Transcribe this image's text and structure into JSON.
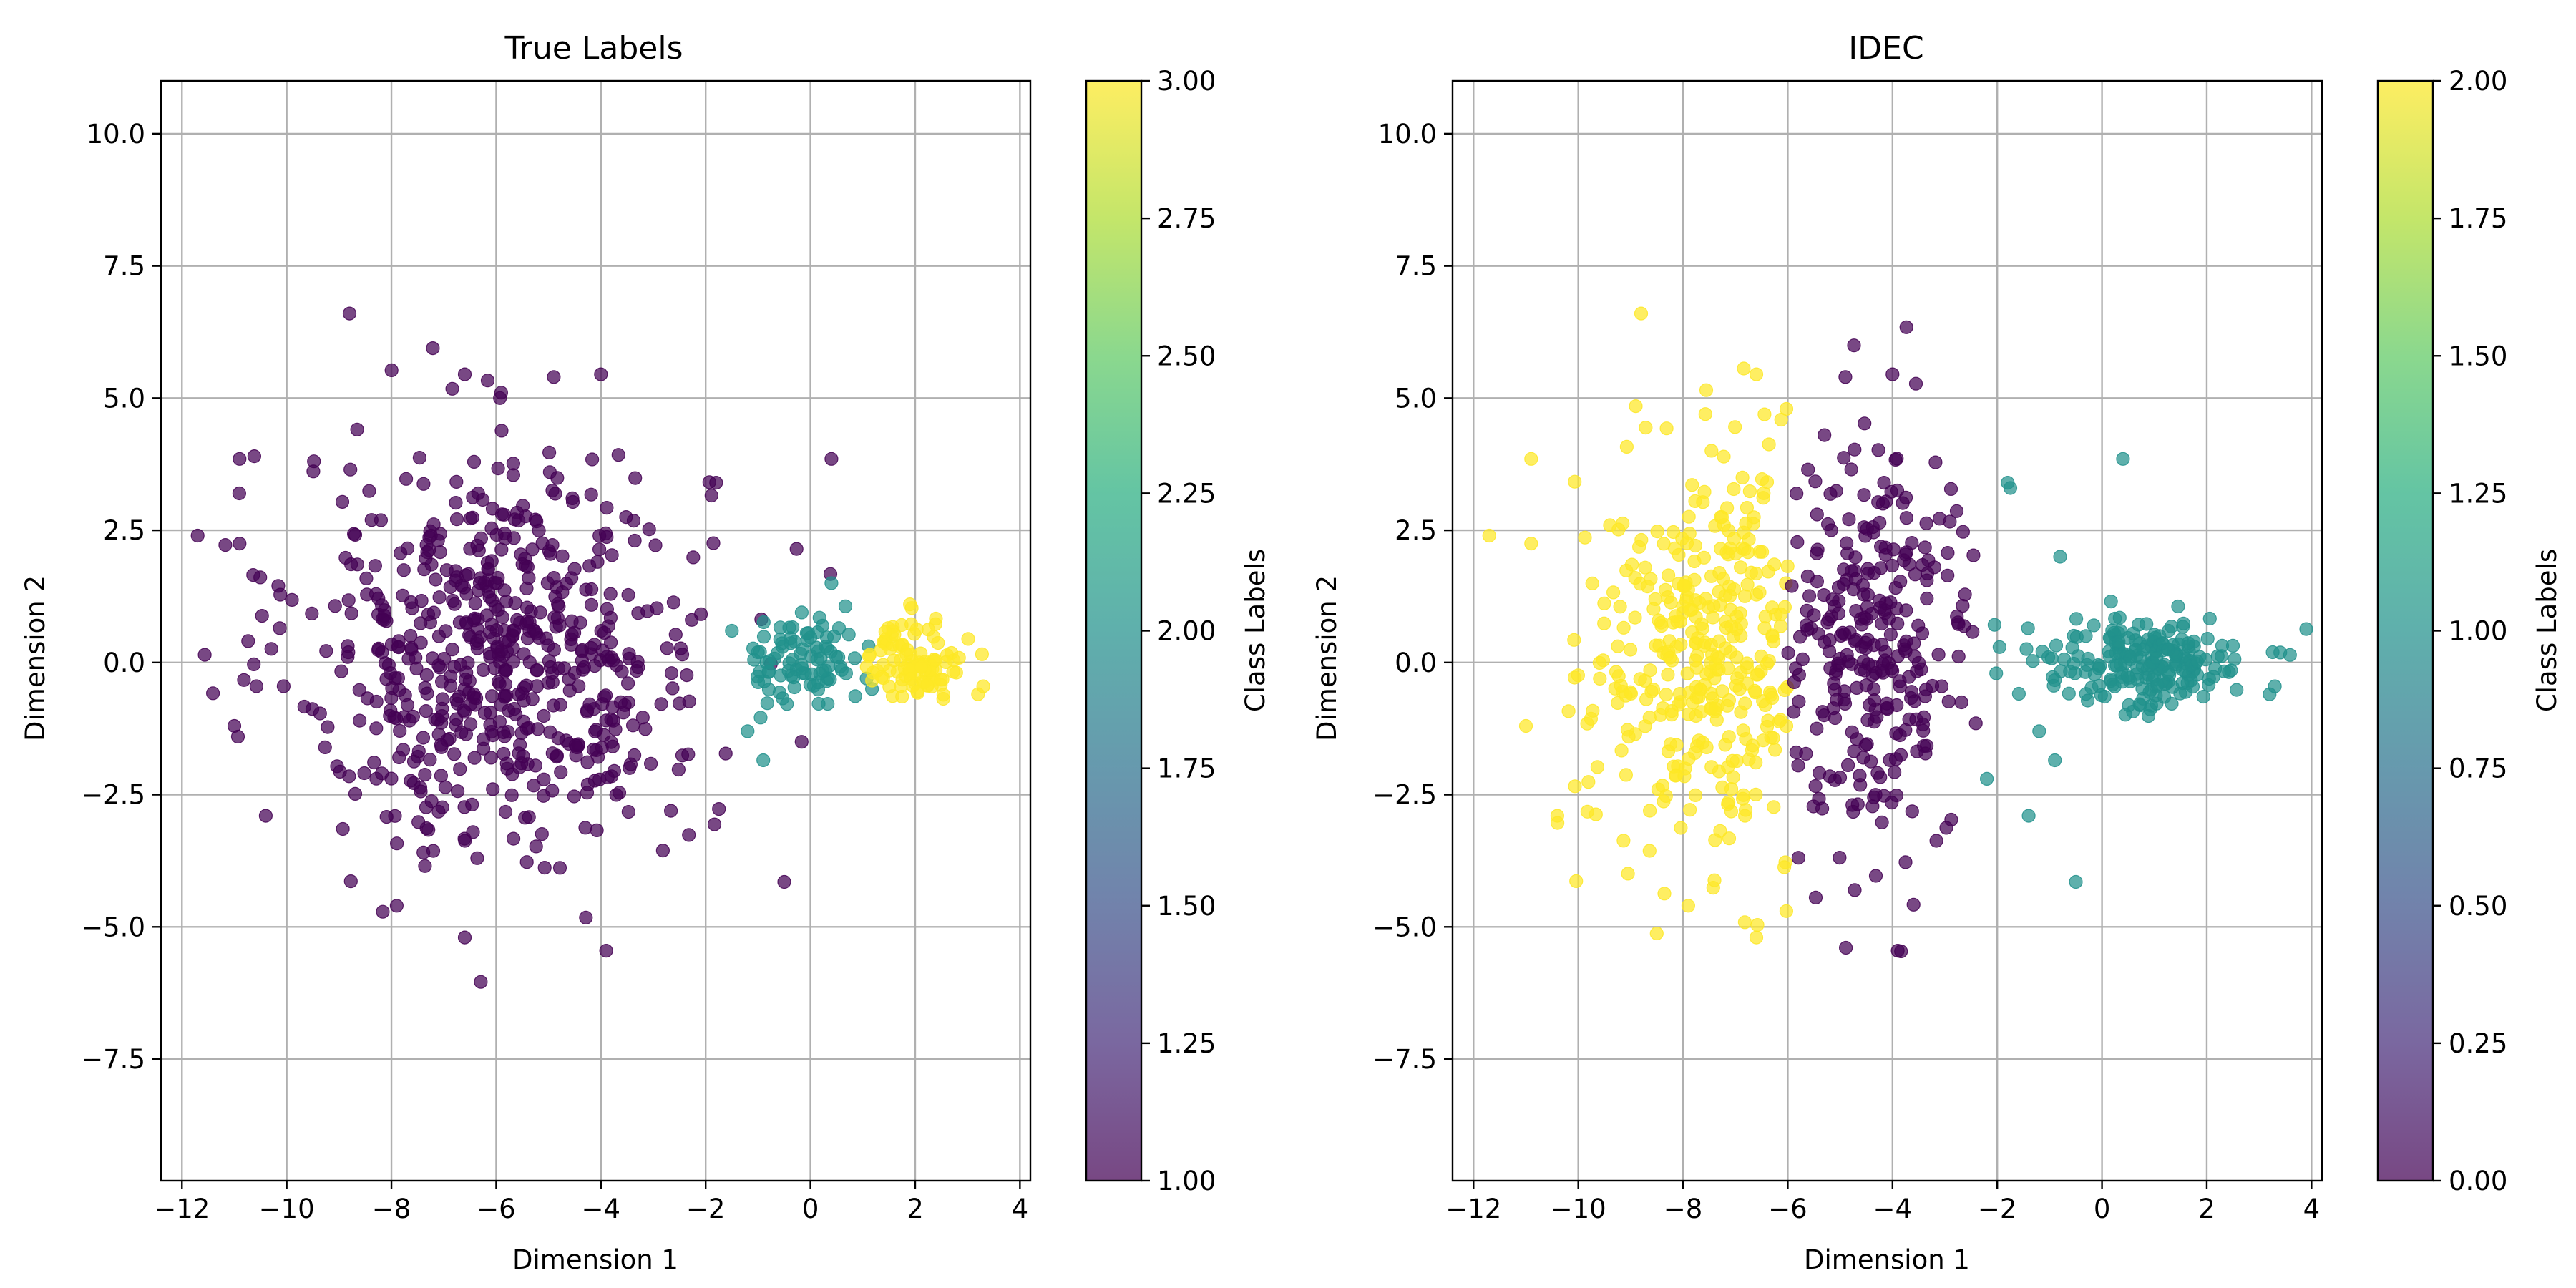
{
  "chart_data": [
    {
      "type": "scatter",
      "title": "True Labels",
      "xlabel": "Dimension 1",
      "ylabel": "Dimension 2",
      "xlim": [
        -12.4,
        4.2
      ],
      "ylim": [
        -9.8,
        11.0
      ],
      "x_ticks": [
        -12,
        -10,
        -8,
        -6,
        -4,
        -2,
        0,
        2,
        4
      ],
      "x_tick_labels": [
        "−12",
        "−10",
        "−8",
        "−6",
        "−4",
        "−2",
        "0",
        "2",
        "4"
      ],
      "y_ticks": [
        -7.5,
        -5.0,
        -2.5,
        0.0,
        2.5,
        5.0,
        7.5,
        10.0
      ],
      "y_tick_labels": [
        "−7.5",
        "−5.0",
        "−2.5",
        "0.0",
        "2.5",
        "5.0",
        "7.5",
        "10.0"
      ],
      "grid": true,
      "colorbar": {
        "label": "Class Labels",
        "range": [
          1.0,
          3.0
        ],
        "ticks": [
          1.0,
          1.25,
          1.5,
          1.75,
          2.0,
          2.25,
          2.5,
          2.75,
          3.0
        ],
        "tick_labels": [
          "1.00",
          "1.25",
          "1.50",
          "1.75",
          "2.00",
          "2.25",
          "2.50",
          "2.75",
          "3.00"
        ],
        "colormap": "viridis"
      },
      "clusters": [
        {
          "label": 1,
          "color": "#440154",
          "center": [
            -5.9,
            0.2
          ],
          "spread": [
            1.95,
            1.9
          ],
          "count": 620,
          "extra_points": [
            [
              -8.8,
              6.6
            ],
            [
              -11.7,
              2.4
            ],
            [
              -10.9,
              3.85
            ],
            [
              0.4,
              3.85
            ],
            [
              -6.6,
              5.45
            ],
            [
              -4.9,
              5.4
            ],
            [
              -4.0,
              5.45
            ],
            [
              -3.9,
              -5.45
            ],
            [
              -0.5,
              -4.15
            ],
            [
              -1.8,
              3.4
            ],
            [
              -10.9,
              2.25
            ],
            [
              -11.0,
              -1.2
            ],
            [
              -10.4,
              -2.9
            ],
            [
              -7.9,
              -4.6
            ],
            [
              -6.6,
              -5.2
            ]
          ]
        },
        {
          "label": 2,
          "color": "#21918c",
          "center": [
            -0.1,
            0.0
          ],
          "spread": [
            0.55,
            0.42
          ],
          "count": 90,
          "extra_points": [
            [
              -1.5,
              0.6
            ],
            [
              -1.2,
              -1.3
            ],
            [
              -0.9,
              -1.85
            ],
            [
              0.4,
              1.5
            ]
          ]
        },
        {
          "label": 3,
          "color": "#fde725",
          "center": [
            2.0,
            0.05
          ],
          "spread": [
            0.45,
            0.38
          ],
          "count": 100,
          "extra_points": [
            [
              3.2,
              -0.6
            ],
            [
              3.3,
              -0.45
            ],
            [
              1.9,
              1.1
            ]
          ]
        }
      ]
    },
    {
      "type": "scatter",
      "title": "IDEC",
      "xlabel": "Dimension 1",
      "ylabel": "Dimension 2",
      "xlim": [
        -12.4,
        4.2
      ],
      "ylim": [
        -9.8,
        11.0
      ],
      "x_ticks": [
        -12,
        -10,
        -8,
        -6,
        -4,
        -2,
        0,
        2,
        4
      ],
      "x_tick_labels": [
        "−12",
        "−10",
        "−8",
        "−6",
        "−4",
        "−2",
        "0",
        "2",
        "4"
      ],
      "y_ticks": [
        -7.5,
        -5.0,
        -2.5,
        0.0,
        2.5,
        5.0,
        7.5,
        10.0
      ],
      "y_tick_labels": [
        "−7.5",
        "−5.0",
        "−2.5",
        "0.0",
        "2.5",
        "5.0",
        "7.5",
        "10.0"
      ],
      "grid": true,
      "colorbar": {
        "label": "Class Labels",
        "range": [
          0.0,
          2.0
        ],
        "ticks": [
          0.0,
          0.25,
          0.5,
          0.75,
          1.0,
          1.25,
          1.5,
          1.75,
          2.0
        ],
        "tick_labels": [
          "0.00",
          "0.25",
          "0.50",
          "0.75",
          "1.00",
          "1.25",
          "1.50",
          "1.75",
          "2.00"
        ],
        "colormap": "viridis"
      },
      "clusters": [
        {
          "label": 2,
          "color": "#fde725",
          "center": [
            -7.3,
            0.2
          ],
          "spread": [
            1.25,
            1.9
          ],
          "count": 360,
          "x_max": -6.0,
          "extra_points": [
            [
              -8.8,
              6.6
            ],
            [
              -11.7,
              2.4
            ],
            [
              -10.9,
              3.85
            ],
            [
              -6.6,
              5.45
            ],
            [
              -11.0,
              -1.2
            ],
            [
              -10.4,
              -2.9
            ],
            [
              -7.9,
              -4.6
            ],
            [
              -6.6,
              -5.2
            ],
            [
              -10.9,
              2.25
            ]
          ]
        },
        {
          "label": 0,
          "color": "#440154",
          "center": [
            -4.4,
            0.2
          ],
          "spread": [
            1.0,
            1.85
          ],
          "count": 290,
          "x_min": -6.0,
          "x_max": -2.2,
          "extra_points": [
            [
              -4.9,
              5.4
            ],
            [
              -4.0,
              5.45
            ],
            [
              -3.9,
              -5.45
            ],
            [
              -5.3,
              4.3
            ]
          ]
        },
        {
          "label": 1,
          "color": "#21918c",
          "center": [
            0.8,
            0.0
          ],
          "spread": [
            1.05,
            0.45
          ],
          "count": 210,
          "x_min": -2.3,
          "extra_points": [
            [
              0.4,
              3.85
            ],
            [
              -1.8,
              3.4
            ],
            [
              -1.75,
              3.3
            ],
            [
              -0.5,
              -4.15
            ],
            [
              -1.2,
              -1.3
            ],
            [
              -0.9,
              -1.85
            ],
            [
              -1.4,
              -2.9
            ],
            [
              -2.2,
              -2.2
            ],
            [
              -0.8,
              2.0
            ],
            [
              3.2,
              -0.6
            ],
            [
              3.3,
              -0.45
            ]
          ]
        }
      ]
    }
  ]
}
